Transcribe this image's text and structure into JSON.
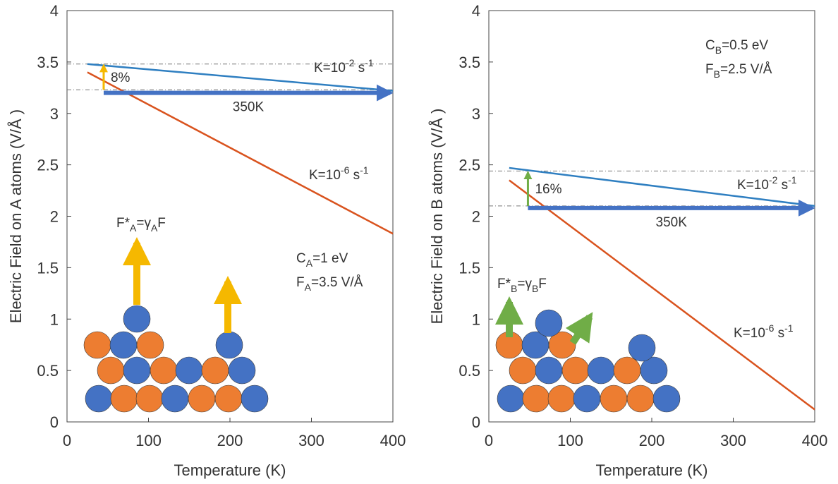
{
  "chart_data": [
    {
      "type": "line",
      "ylabel": "Electric Field on A atoms (V/Å )",
      "xlabel": "Temperature (K)",
      "xlim": [
        0,
        400
      ],
      "xticks": [
        0,
        100,
        200,
        300,
        400
      ],
      "ylim": [
        0,
        4
      ],
      "yticks": [
        0,
        0.5,
        1,
        1.5,
        2,
        2.5,
        3,
        3.5,
        4
      ],
      "series": [
        {
          "color": "#2f7fc1",
          "x": [
            25,
            400
          ],
          "values": [
            3.48,
            3.22
          ],
          "label": [
            {
              "text": "K=10"
            },
            {
              "text": "-2",
              "shift": "sup"
            },
            {
              "text": " s"
            },
            {
              "text": "-1",
              "shift": "sup"
            }
          ]
        },
        {
          "color": "#d9531e",
          "x": [
            25,
            400
          ],
          "values": [
            3.4,
            1.83
          ],
          "label": [
            {
              "text": "K=10"
            },
            {
              "text": "-6",
              "shift": "sup"
            },
            {
              "text": " s"
            },
            {
              "text": "-1",
              "shift": "sup"
            }
          ]
        }
      ],
      "reference_lines": [
        3.48,
        3.23
      ],
      "range_arrow": {
        "label": "350K",
        "x": [
          45,
          400
        ],
        "y": 3.2,
        "color": "#4472c4"
      },
      "rise_arrow": {
        "label": "8%",
        "x": 45,
        "y": [
          3.23,
          3.48
        ],
        "color": "#f5b800"
      },
      "notes": [
        {
          "color": "#4472c4",
          "segments": [
            {
              "text": "C"
            },
            {
              "text": "A",
              "shift": "sub"
            },
            {
              "text": "=1 eV"
            }
          ]
        },
        {
          "color": "#4472c4",
          "segments": [
            {
              "text": "F"
            },
            {
              "text": "A",
              "shift": "sub"
            },
            {
              "text": "=3.5 V/Å"
            }
          ]
        },
        {
          "color": "#f5b800",
          "segments": [
            {
              "text": "F*"
            },
            {
              "text": "A",
              "shift": "sub"
            },
            {
              "text": "=γ"
            },
            {
              "text": "A",
              "shift": "sub"
            },
            {
              "text": "F"
            }
          ]
        }
      ]
    },
    {
      "type": "line",
      "ylabel": "Electric Field on B atoms (V/Å )",
      "xlabel": "Temperature (K)",
      "xlim": [
        0,
        400
      ],
      "xticks": [
        0,
        100,
        200,
        300,
        400
      ],
      "ylim": [
        0,
        4
      ],
      "yticks": [
        0,
        0.5,
        1,
        1.5,
        2,
        2.5,
        3,
        3.5,
        4
      ],
      "series": [
        {
          "color": "#2f7fc1",
          "x": [
            25,
            400
          ],
          "values": [
            2.47,
            2.1
          ],
          "label": [
            {
              "text": "K=10"
            },
            {
              "text": "-2",
              "shift": "sup"
            },
            {
              "text": " s"
            },
            {
              "text": "-1",
              "shift": "sup"
            }
          ]
        },
        {
          "color": "#d9531e",
          "x": [
            25,
            400
          ],
          "values": [
            2.35,
            0.12
          ],
          "label": [
            {
              "text": "K=10"
            },
            {
              "text": "-6",
              "shift": "sup"
            },
            {
              "text": " s"
            },
            {
              "text": "-1",
              "shift": "sup"
            }
          ]
        }
      ],
      "reference_lines": [
        2.44,
        2.1
      ],
      "range_arrow": {
        "label": "350K",
        "x": [
          48,
          400
        ],
        "y": 2.08,
        "color": "#4472c4"
      },
      "rise_arrow": {
        "label": "16%",
        "x": 48,
        "y": [
          2.1,
          2.44
        ],
        "color": "#70ad47"
      },
      "notes": [
        {
          "color": "#e07b2a",
          "segments": [
            {
              "text": "C"
            },
            {
              "text": "B",
              "shift": "sub"
            },
            {
              "text": "=0.5 eV"
            }
          ]
        },
        {
          "color": "#e07b2a",
          "segments": [
            {
              "text": "F"
            },
            {
              "text": "B",
              "shift": "sub"
            },
            {
              "text": "=2.5 V/Å"
            }
          ]
        },
        {
          "color": "#70ad47",
          "segments": [
            {
              "text": "F*"
            },
            {
              "text": "B",
              "shift": "sub"
            },
            {
              "text": "=γ"
            },
            {
              "text": "B",
              "shift": "sub"
            },
            {
              "text": "F"
            }
          ]
        }
      ]
    }
  ]
}
